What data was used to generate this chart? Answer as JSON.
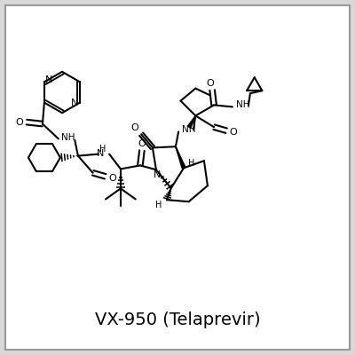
{
  "title": "VX-950 (Telaprevir)",
  "title_fontsize": 14,
  "bg_color": "#d8d8d8",
  "panel_color": "#ffffff",
  "line_color": "#000000",
  "line_width": 1.5,
  "figsize": [
    4.0,
    4.0
  ],
  "dpi": 100,
  "xlim": [
    0,
    10
  ],
  "ylim": [
    0,
    10
  ]
}
